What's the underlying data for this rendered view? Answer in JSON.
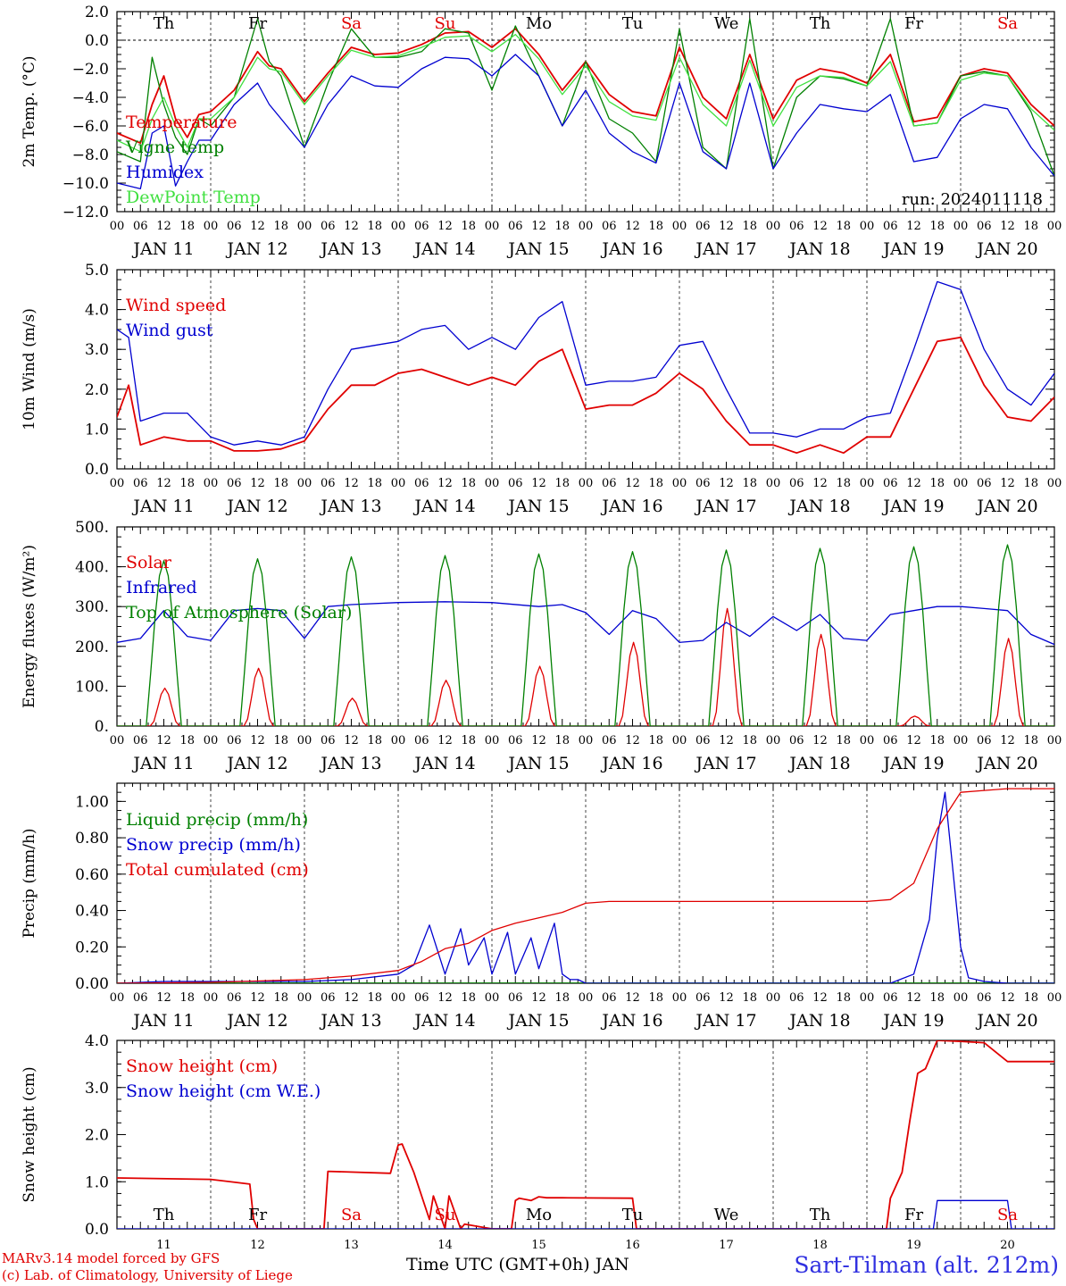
{
  "footer": {
    "model_line": "MARv3.14 model forced by GFS",
    "credit_line": "(c) Lab. of Climatology, University of Liege",
    "xlabel": "Time UTC (GMT+0h) JAN",
    "station": "Sart-Tilman (alt. 212m)"
  },
  "axis": {
    "hour_ticks": [
      "00",
      "06",
      "12",
      "18"
    ],
    "last_hour_tick": "00",
    "date_labels": [
      "JAN 11",
      "JAN 12",
      "JAN 13",
      "JAN 14",
      "JAN 15",
      "JAN 16",
      "JAN 17",
      "JAN 18",
      "JAN 19",
      "JAN 20"
    ],
    "bottom_day_numbers": [
      "11",
      "12",
      "13",
      "14",
      "15",
      "16",
      "17",
      "18",
      "19",
      "20"
    ]
  },
  "weekdays": [
    {
      "label": "Th",
      "color": "#000000"
    },
    {
      "label": "Fr",
      "color": "#000000"
    },
    {
      "label": "Sa",
      "color": "#e00000"
    },
    {
      "label": "Su",
      "color": "#e00000"
    },
    {
      "label": "Mo",
      "color": "#000000"
    },
    {
      "label": "Tu",
      "color": "#000000"
    },
    {
      "label": "We",
      "color": "#000000"
    },
    {
      "label": "Th",
      "color": "#000000"
    },
    {
      "label": "Fr",
      "color": "#000000"
    },
    {
      "label": "Sa",
      "color": "#e00000"
    }
  ],
  "chart_data": [
    {
      "type": "line",
      "ylabel": "2m Temp. (°C)",
      "ylim": [
        -12,
        2
      ],
      "yticks": [
        "2.0",
        "0.0",
        "−2.0",
        "−4.0",
        "−6.0",
        "−8.0",
        "−10.0",
        "−12.0"
      ],
      "ytick_values": [
        2,
        0,
        -2,
        -4,
        -6,
        -8,
        -10,
        -12
      ],
      "annotation": "run: 2024011118",
      "x_hours": [
        0,
        6,
        9,
        12,
        15,
        18,
        21,
        24,
        30,
        36,
        39,
        42,
        48,
        54,
        60,
        66,
        72,
        78,
        84,
        90,
        96,
        102,
        108,
        114,
        120,
        126,
        132,
        138,
        144,
        150,
        156,
        162,
        168,
        174,
        180,
        186,
        192,
        198,
        204,
        210,
        216,
        222,
        228,
        234,
        240
      ],
      "series": [
        {
          "name": "Temperature",
          "color": "#e00000",
          "values": [
            -6.5,
            -7.2,
            -4.5,
            -2.5,
            -5.5,
            -6.8,
            -5.2,
            -5.0,
            -3.5,
            -0.8,
            -1.8,
            -2.0,
            -4.3,
            -2.3,
            -0.5,
            -1.0,
            -0.9,
            -0.3,
            0.5,
            0.6,
            -0.5,
            0.8,
            -1.0,
            -3.5,
            -1.5,
            -3.8,
            -5.0,
            -5.3,
            -0.5,
            -4.0,
            -5.5,
            -1.0,
            -5.5,
            -2.8,
            -2.0,
            -2.3,
            -3.0,
            -1.0,
            -5.7,
            -5.4,
            -2.5,
            -2.0,
            -2.3,
            -4.5,
            -6.0
          ]
        },
        {
          "name": "Vigne temp",
          "color": "#008000",
          "values": [
            -7.8,
            -8.5,
            -1.2,
            -4.5,
            -6.8,
            -8.0,
            -5.5,
            -6.0,
            -4.0,
            1.5,
            -1.5,
            -2.5,
            -7.5,
            -3.0,
            0.8,
            -1.2,
            -1.2,
            -0.8,
            0.8,
            0.5,
            -3.5,
            1.0,
            -2.5,
            -6.0,
            -1.5,
            -5.5,
            -6.5,
            -8.5,
            0.8,
            -7.5,
            -9.0,
            1.5,
            -9.0,
            -4.0,
            -2.5,
            -2.7,
            -3.2,
            1.5,
            -6.0,
            -5.8,
            -2.5,
            -2.2,
            -2.5,
            -5.0,
            -9.5
          ]
        },
        {
          "name": "Humidex",
          "color": "#0000d0",
          "values": [
            -10.0,
            -10.4,
            -6.5,
            -6.0,
            -10.2,
            -8.5,
            -7.0,
            -7.0,
            -4.5,
            -3.0,
            -4.5,
            -5.5,
            -7.5,
            -4.5,
            -2.5,
            -3.2,
            -3.3,
            -2.0,
            -1.2,
            -1.3,
            -2.5,
            -1.0,
            -2.5,
            -6.0,
            -3.5,
            -6.5,
            -7.8,
            -8.6,
            -3.0,
            -7.8,
            -9.0,
            -3.0,
            -9.0,
            -6.5,
            -4.5,
            -4.8,
            -5.0,
            -3.8,
            -8.5,
            -8.2,
            -5.5,
            -4.5,
            -4.8,
            -7.5,
            -9.5
          ]
        },
        {
          "name": "DewPoint Temp",
          "color": "#40e040",
          "values": [
            -7.0,
            -7.8,
            -5.5,
            -4.0,
            -6.0,
            -7.5,
            -5.5,
            -5.5,
            -4.0,
            -1.2,
            -2.0,
            -2.2,
            -4.5,
            -2.5,
            -0.7,
            -1.2,
            -1.1,
            -0.5,
            0.2,
            0.3,
            -0.8,
            0.4,
            -1.3,
            -3.8,
            -1.8,
            -4.3,
            -5.3,
            -5.6,
            -1.2,
            -4.5,
            -6.0,
            -1.4,
            -6.0,
            -3.3,
            -2.5,
            -2.6,
            -3.2,
            -1.5,
            -6.0,
            -5.8,
            -2.8,
            -2.3,
            -2.5,
            -4.8,
            -6.3
          ]
        }
      ]
    },
    {
      "type": "line",
      "ylabel": "10m Wind (m/s)",
      "ylim": [
        0,
        5
      ],
      "yticks": [
        "5.0",
        "4.0",
        "3.0",
        "2.0",
        "1.0",
        "0.0"
      ],
      "ytick_values": [
        5,
        4,
        3,
        2,
        1,
        0
      ],
      "x_hours": [
        0,
        3,
        6,
        12,
        18,
        24,
        30,
        36,
        42,
        48,
        54,
        60,
        66,
        72,
        78,
        84,
        90,
        96,
        102,
        108,
        114,
        120,
        126,
        132,
        138,
        144,
        150,
        156,
        162,
        168,
        174,
        180,
        186,
        192,
        198,
        204,
        210,
        216,
        222,
        228,
        234,
        240
      ],
      "series": [
        {
          "name": "Wind speed",
          "color": "#e00000",
          "values": [
            1.3,
            2.1,
            0.6,
            0.8,
            0.7,
            0.7,
            0.45,
            0.45,
            0.5,
            0.7,
            1.5,
            2.1,
            2.1,
            2.4,
            2.5,
            2.3,
            2.1,
            2.3,
            2.1,
            2.7,
            3.0,
            1.5,
            1.6,
            1.6,
            1.9,
            2.4,
            2.0,
            1.2,
            0.6,
            0.6,
            0.4,
            0.6,
            0.4,
            0.8,
            0.8,
            2.0,
            3.2,
            3.3,
            2.1,
            1.3,
            1.2,
            1.8
          ]
        },
        {
          "name": "Wind gust",
          "color": "#0000d0",
          "values": [
            3.5,
            3.3,
            1.2,
            1.4,
            1.4,
            0.8,
            0.6,
            0.7,
            0.6,
            0.8,
            2.0,
            3.0,
            3.1,
            3.2,
            3.5,
            3.6,
            3.0,
            3.3,
            3.0,
            3.8,
            4.2,
            2.1,
            2.2,
            2.2,
            2.3,
            3.1,
            3.2,
            2.0,
            0.9,
            0.9,
            0.8,
            1.0,
            1.0,
            1.3,
            1.4,
            3.0,
            4.7,
            4.5,
            3.0,
            2.0,
            1.6,
            2.4
          ]
        }
      ]
    },
    {
      "type": "line",
      "ylabel": "Energy fluxes (W/m²)",
      "ylim": [
        0,
        500
      ],
      "yticks": [
        "500.",
        "400.",
        "300.",
        "200.",
        "100.",
        "0."
      ],
      "ytick_values": [
        500,
        400,
        300,
        200,
        100,
        0
      ],
      "series": [
        {
          "name": "Solar",
          "color": "#e00000",
          "daily_peak": [
            95,
            145,
            70,
            115,
            150,
            210,
            295,
            230,
            25,
            220
          ]
        },
        {
          "name": "Infrared",
          "color": "#0000d0",
          "x_hours": [
            0,
            6,
            12,
            18,
            24,
            30,
            36,
            42,
            48,
            54,
            60,
            72,
            84,
            96,
            108,
            114,
            120,
            126,
            132,
            138,
            144,
            150,
            156,
            162,
            168,
            174,
            180,
            186,
            192,
            198,
            204,
            210,
            216,
            222,
            228,
            234,
            240
          ],
          "values": [
            210,
            220,
            290,
            225,
            215,
            290,
            295,
            290,
            220,
            300,
            305,
            310,
            312,
            310,
            300,
            305,
            285,
            230,
            290,
            270,
            210,
            215,
            260,
            225,
            275,
            240,
            280,
            220,
            215,
            280,
            290,
            300,
            300,
            295,
            290,
            230,
            205
          ]
        },
        {
          "name": "Top of Atmosphere (Solar)",
          "color": "#008000",
          "daily_peak": [
            415,
            420,
            425,
            428,
            432,
            438,
            442,
            446,
            450,
            455
          ]
        }
      ]
    },
    {
      "type": "line",
      "ylabel": "Precip (mm/h)",
      "ylim": [
        0,
        1.1
      ],
      "yticks": [
        "1.00",
        "0.80",
        "0.60",
        "0.40",
        "0.20",
        "0.00"
      ],
      "ytick_values": [
        1.0,
        0.8,
        0.6,
        0.4,
        0.2,
        0.0
      ],
      "series": [
        {
          "name": "Liquid precip (mm/h)",
          "color": "#008000",
          "x_hours": [
            0,
            240
          ],
          "values": [
            0,
            0
          ]
        },
        {
          "name": "Snow precip (mm/h)",
          "color": "#0000d0",
          "x_hours": [
            0,
            12,
            48,
            60,
            72,
            76,
            80,
            84,
            88,
            90,
            94,
            96,
            100,
            102,
            106,
            108,
            112,
            114,
            116,
            118,
            120,
            124,
            168,
            198,
            204,
            208,
            210,
            212,
            216,
            218,
            222,
            228,
            240
          ],
          "values": [
            0,
            0.01,
            0.01,
            0.02,
            0.05,
            0.1,
            0.32,
            0.05,
            0.3,
            0.1,
            0.25,
            0.05,
            0.28,
            0.05,
            0.25,
            0.08,
            0.33,
            0.05,
            0.02,
            0.02,
            0,
            0,
            0,
            0,
            0.05,
            0.35,
            0.8,
            1.05,
            0.2,
            0.03,
            0.01,
            0,
            0
          ]
        },
        {
          "name": "Total cumulated (cm)",
          "color": "#e00000",
          "x_hours": [
            0,
            24,
            48,
            60,
            72,
            78,
            84,
            90,
            96,
            102,
            108,
            114,
            120,
            126,
            144,
            168,
            192,
            198,
            204,
            210,
            216,
            222,
            228,
            240
          ],
          "values": [
            0,
            0.005,
            0.02,
            0.04,
            0.07,
            0.12,
            0.19,
            0.22,
            0.29,
            0.33,
            0.36,
            0.39,
            0.44,
            0.45,
            0.45,
            0.45,
            0.45,
            0.46,
            0.55,
            0.85,
            1.05,
            1.06,
            1.07,
            1.07
          ]
        }
      ]
    },
    {
      "type": "line",
      "ylabel": "Snow height (cm)",
      "ylim": [
        0,
        4
      ],
      "yticks": [
        "4.0",
        "3.0",
        "2.0",
        "1.0",
        "0.0"
      ],
      "ytick_values": [
        4.0,
        3.0,
        2.0,
        1.0,
        0.0
      ],
      "series": [
        {
          "name": "Snow height (cm)",
          "color": "#e00000",
          "x_hours": [
            0,
            24,
            34,
            35,
            36,
            53,
            54,
            70,
            72,
            73,
            76,
            80,
            81,
            84,
            85,
            88,
            89,
            96,
            101,
            102,
            103,
            106,
            108,
            110,
            114,
            132,
            133,
            197,
            198,
            201,
            203,
            205,
            207,
            210,
            216,
            222,
            228,
            240
          ],
          "values": [
            1.08,
            1.05,
            0.95,
            0.2,
            0,
            0,
            1.22,
            1.18,
            1.78,
            1.8,
            1.2,
            0.2,
            0.7,
            0,
            0.7,
            0,
            0.1,
            0,
            0,
            0.6,
            0.65,
            0.6,
            0.68,
            0.66,
            0.66,
            0.65,
            0,
            0,
            0.65,
            1.2,
            2.3,
            3.3,
            3.4,
            4.0,
            3.98,
            3.95,
            3.55,
            3.55
          ]
        },
        {
          "name": "Snow height (cm W.E.)",
          "color": "#0000d0",
          "x_hours": [
            0,
            209,
            210,
            228,
            229,
            240
          ],
          "values": [
            0,
            0,
            0.6,
            0.6,
            0,
            0
          ]
        }
      ]
    }
  ]
}
